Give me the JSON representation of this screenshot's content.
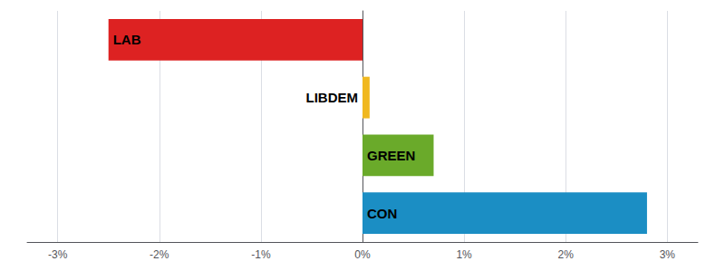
{
  "chart_data": {
    "type": "bar",
    "orientation": "horizontal",
    "categories": [
      "LAB",
      "LIBDEM",
      "GREEN",
      "CON"
    ],
    "values": [
      -2.5,
      0.07,
      0.7,
      2.8
    ],
    "colors": [
      "#dd2222",
      "#f0b820",
      "#6aaa2a",
      "#1b8ec4"
    ],
    "xlim": [
      -3.3,
      3.3
    ],
    "xticks": [
      {
        "value": -3,
        "label": "-3%"
      },
      {
        "value": -2,
        "label": "-2%"
      },
      {
        "value": -1,
        "label": "-1%"
      },
      {
        "value": 0,
        "label": "0%"
      },
      {
        "value": 1,
        "label": "1%"
      },
      {
        "value": 2,
        "label": "2%"
      },
      {
        "value": 3,
        "label": "3%"
      }
    ],
    "grid": true,
    "tick_labels": "x"
  }
}
